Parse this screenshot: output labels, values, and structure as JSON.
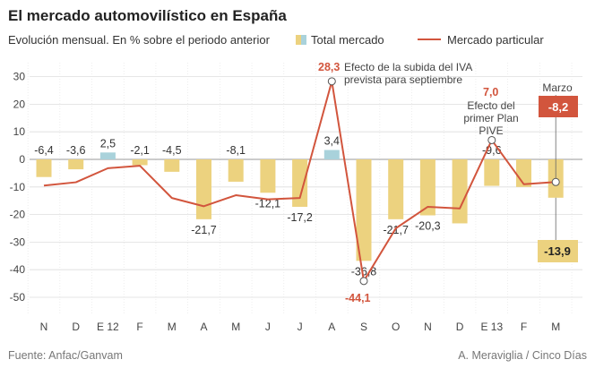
{
  "chart_data": {
    "type": "bar",
    "title": "El mercado automovilístico en España",
    "subtitle": "Evolución mensual. En % sobre el periodo anterior",
    "categories": [
      "N",
      "D",
      "E 12",
      "F",
      "M",
      "A",
      "M",
      "J",
      "J",
      "A",
      "S",
      "O",
      "N",
      "D",
      "E 13",
      "F",
      "M"
    ],
    "ylim": [
      -50,
      30
    ],
    "yticks": [
      30,
      20,
      10,
      0,
      -10,
      -20,
      -30,
      -40,
      -50
    ],
    "series": [
      {
        "name": "Total mercado",
        "kind": "bar",
        "values": [
          -6.4,
          -3.6,
          2.5,
          -2.1,
          -4.5,
          -21.7,
          -8.1,
          -12.1,
          -17.2,
          3.4,
          -36.8,
          -21.7,
          -20.3,
          -23.2,
          -9.6,
          -10.0,
          -13.9
        ],
        "labels": [
          "-6,4",
          "-3,6",
          "2,5",
          "-2,1",
          "-4,5",
          "-21,7",
          "-8,1",
          "-12,1",
          "-17,2",
          "3,4",
          "-36,8",
          "-21,7",
          "-20,3",
          "",
          "-9,6",
          "",
          "-13,9"
        ],
        "color_negative": "#ecd27f",
        "color_positive": "#a9d2db"
      },
      {
        "name": "Mercado particular",
        "kind": "line",
        "values": [
          -9.5,
          -8.3,
          -3.2,
          -2.3,
          -14.0,
          -17.0,
          -13.0,
          -14.5,
          -14.0,
          28.3,
          -44.1,
          -25.0,
          -17.2,
          -17.8,
          7.0,
          -9.0,
          -8.2
        ],
        "color": "#d2553d"
      }
    ],
    "legend": [
      {
        "label": "Total mercado",
        "color": "#ecd27f",
        "color2": "#a9d2db"
      },
      {
        "label": "Mercado particular",
        "color": "#d2553d"
      }
    ],
    "annotations": {
      "iva_value": "28,3",
      "iva_line1": "Efecto de la subida del IVA",
      "iva_line2": "prevista para septiembre",
      "sep_low": "-44,1",
      "pive_value": "7,0",
      "pive_line1": "Efecto del",
      "pive_line2": "primer Plan",
      "pive_line3": "PIVE",
      "marzo_label": "Marzo",
      "marzo_particular": "-8,2",
      "marzo_total": "-13,9"
    }
  },
  "footer": {
    "source": "Fuente: Anfac/Ganvam",
    "credit": "A. Meraviglia / Cinco Días"
  },
  "colors": {
    "accent_red": "#d2553d",
    "grid": "#dddddd",
    "highlight_box": "#ecd27f"
  }
}
